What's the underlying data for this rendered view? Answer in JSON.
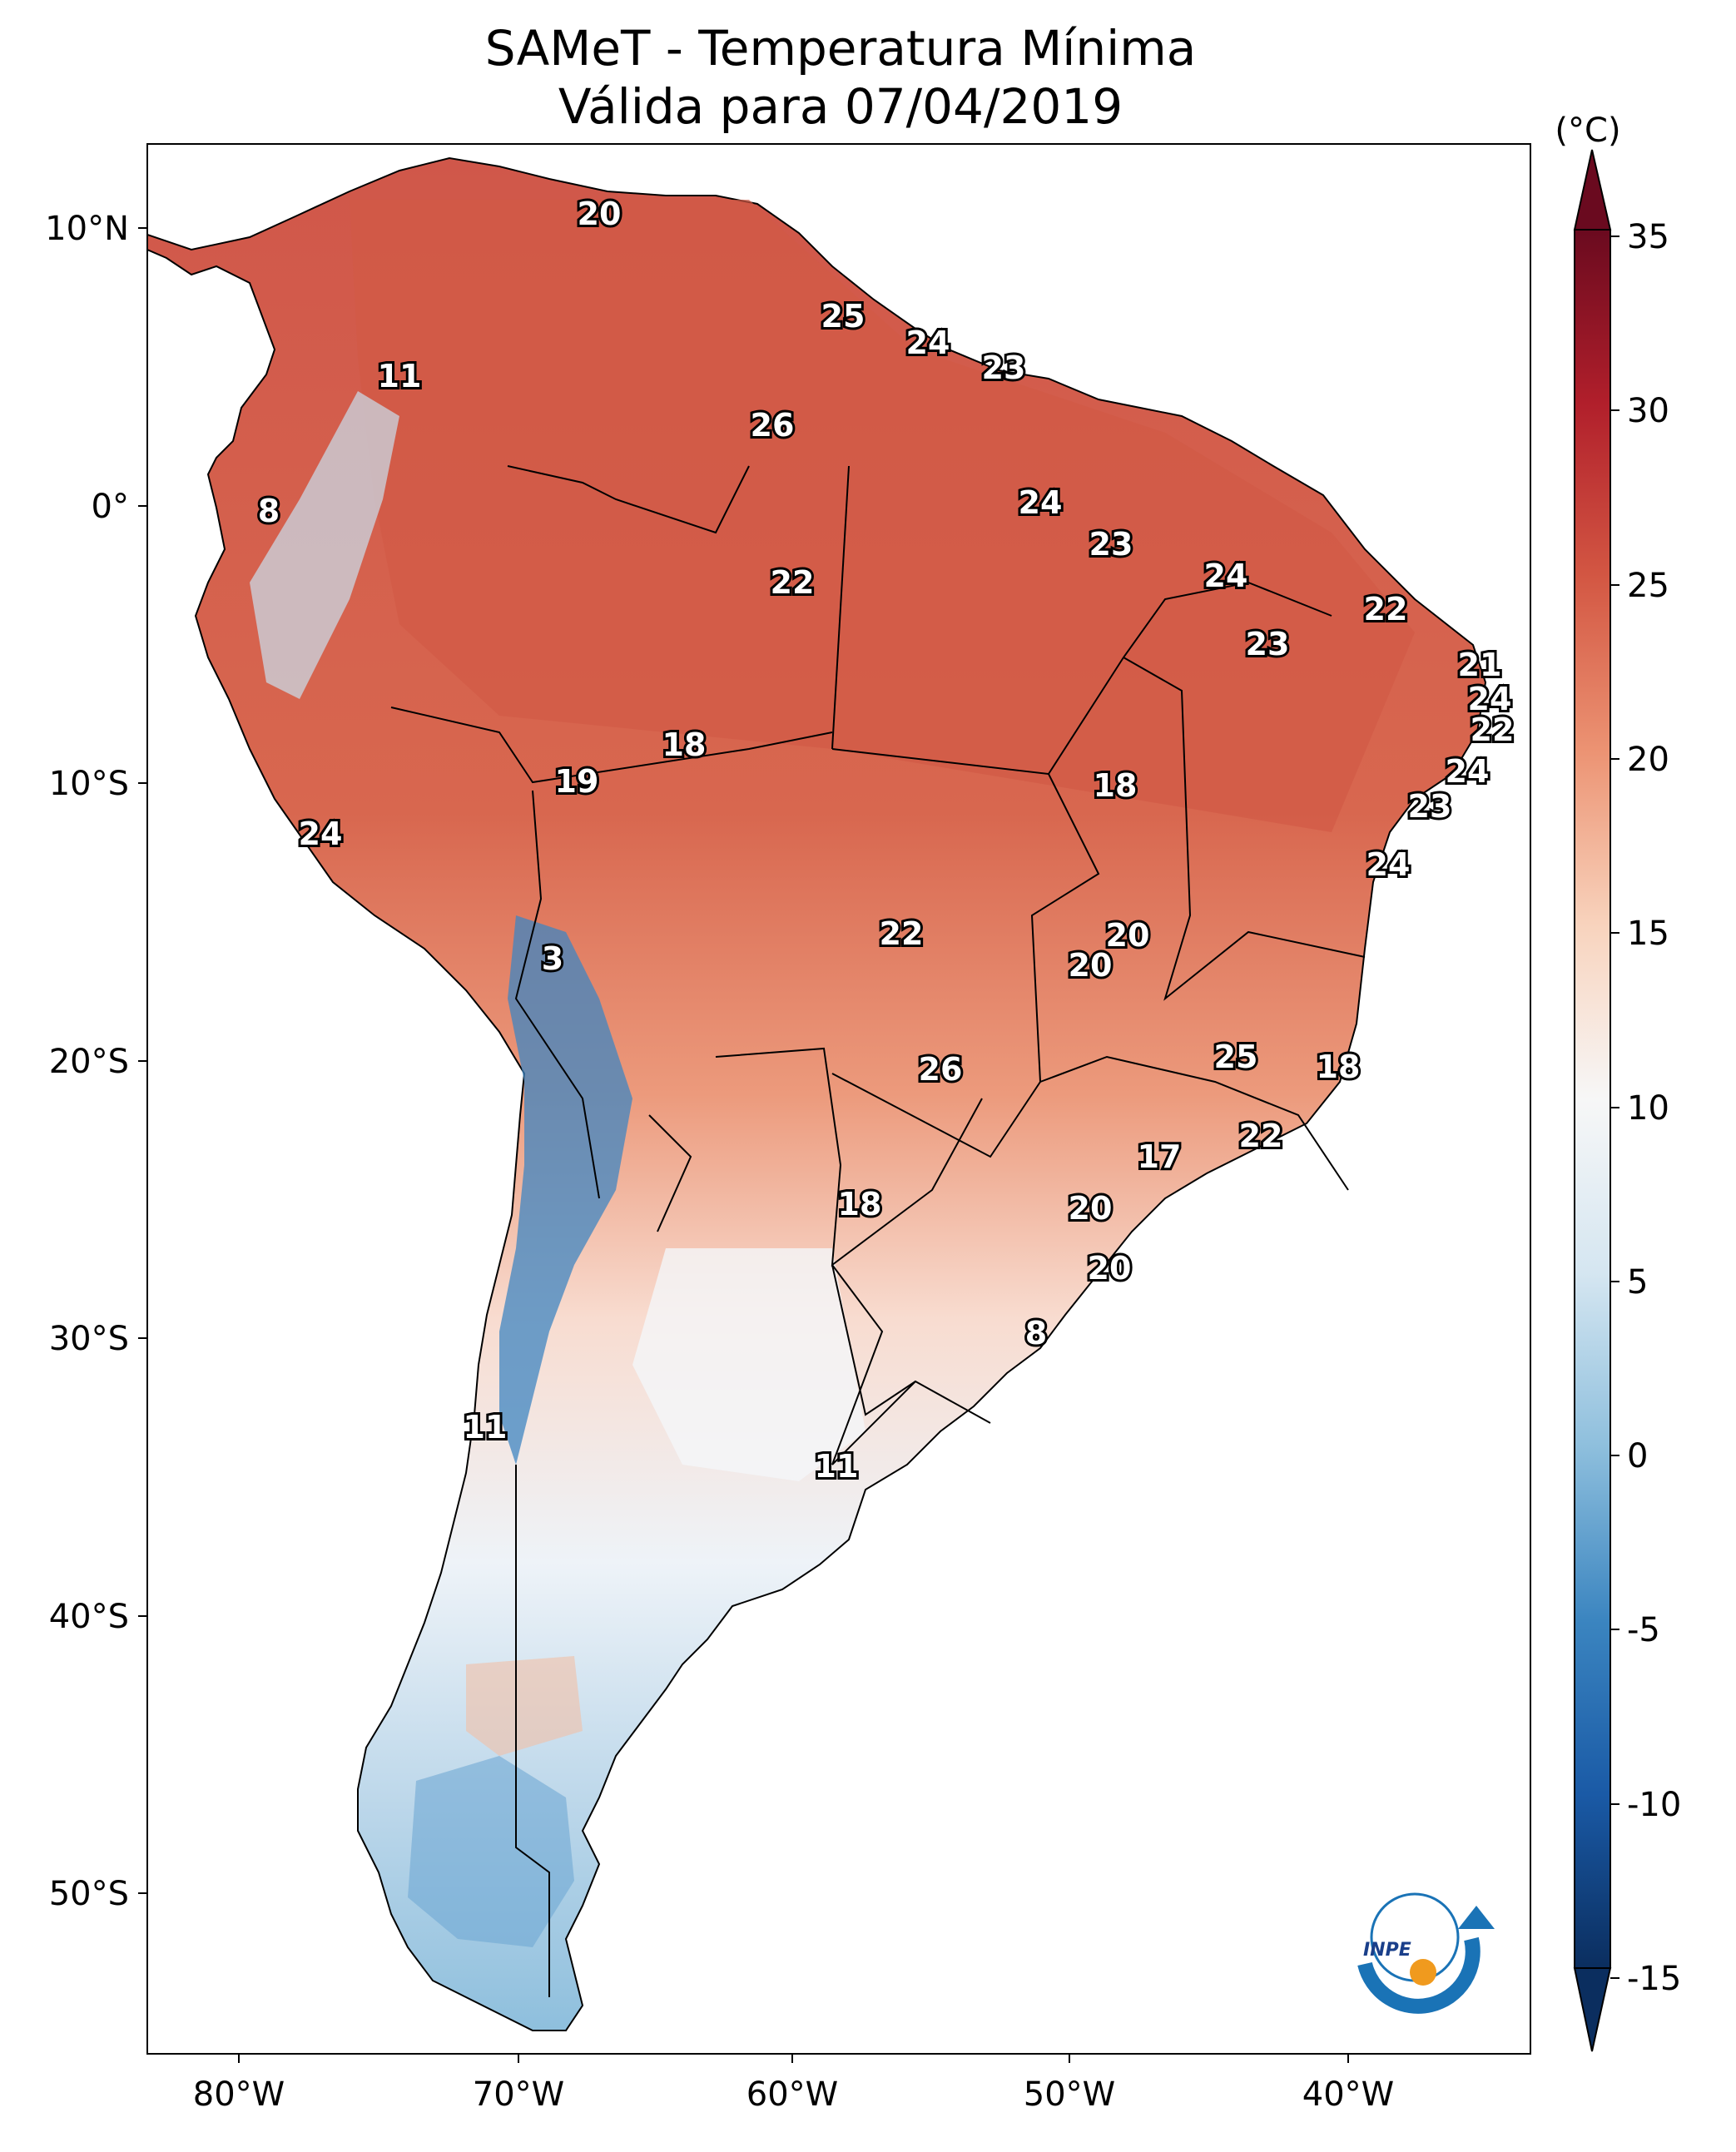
{
  "title_line1": "SAMeT - Temperatura Mínima",
  "title_line2": "Válida para 07/04/2019",
  "colorbar": {
    "unit_label": "(°C)",
    "ticks": [
      "35",
      "30",
      "25",
      "20",
      "15",
      "10",
      "5",
      "0",
      "-5",
      "-10",
      "-15"
    ],
    "range": [
      -15,
      35
    ]
  },
  "axes": {
    "lat_labels": [
      "10°N",
      "0°",
      "10°S",
      "20°S",
      "30°S",
      "40°S",
      "50°S"
    ],
    "lon_labels": [
      "80°W",
      "70°W",
      "60°W",
      "50°W",
      "40°W"
    ]
  },
  "station_values": [
    "20",
    "25",
    "24",
    "23",
    "11",
    "26",
    "8",
    "24",
    "23",
    "24",
    "22",
    "23",
    "21",
    "24",
    "22",
    "24",
    "23",
    "24",
    "22",
    "18",
    "19",
    "24",
    "18",
    "3",
    "22",
    "20",
    "20",
    "25",
    "18",
    "26",
    "22",
    "17",
    "18",
    "20",
    "20",
    "8",
    "11",
    "11"
  ],
  "logo": {
    "name": "INPE"
  }
}
